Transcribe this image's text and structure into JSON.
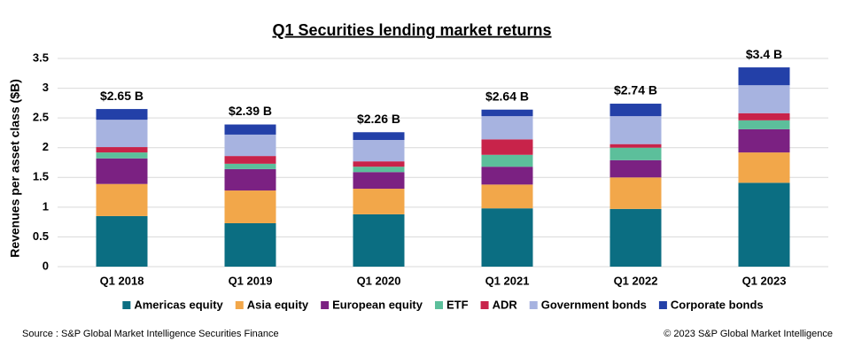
{
  "chart_data": {
    "type": "stacked_bar",
    "title": "Q1 Securities lending market returns",
    "y_label": "Revenues per asset class ($B)",
    "categories": [
      "Q1 2018",
      "Q1 2019",
      "Q1 2020",
      "Q1 2021",
      "Q1 2022",
      "Q1 2023"
    ],
    "series": [
      {
        "name": "Americas equity",
        "color": "#0b6e82",
        "values": [
          0.85,
          0.73,
          0.88,
          0.98,
          0.97,
          1.41
        ]
      },
      {
        "name": "Asia equity",
        "color": "#f2a74a",
        "values": [
          0.54,
          0.55,
          0.43,
          0.4,
          0.53,
          0.51
        ]
      },
      {
        "name": "European equity",
        "color": "#7b2182",
        "values": [
          0.43,
          0.36,
          0.28,
          0.3,
          0.29,
          0.39
        ]
      },
      {
        "name": "ETF",
        "color": "#5cbf9b",
        "values": [
          0.1,
          0.09,
          0.09,
          0.2,
          0.21,
          0.15
        ]
      },
      {
        "name": "ADR",
        "color": "#c8234a",
        "values": [
          0.09,
          0.13,
          0.09,
          0.26,
          0.06,
          0.12
        ]
      },
      {
        "name": "Government bonds",
        "color": "#a7b3e0",
        "values": [
          0.46,
          0.36,
          0.36,
          0.39,
          0.47,
          0.47
        ]
      },
      {
        "name": "Corporate bonds",
        "color": "#2340a8",
        "values": [
          0.18,
          0.17,
          0.13,
          0.11,
          0.21,
          0.3
        ]
      }
    ],
    "totals": {
      "values": [
        2.65,
        2.39,
        2.26,
        2.64,
        2.74,
        3.4
      ],
      "value_labels": [
        "$2.65 B",
        "$2.39 B",
        "$2.26 B",
        "$2.64 B",
        "$2.74 B",
        "$3.4 B"
      ]
    },
    "ylim": [
      0,
      3.5
    ],
    "yticks": [
      0,
      0.5,
      1,
      1.5,
      2,
      2.5,
      3,
      3.5
    ],
    "grid": true
  },
  "footer": {
    "source": "Source : S&P Global Market Intelligence Securities Finance",
    "copyright": "© 2023 S&P Global Market Intelligence"
  }
}
